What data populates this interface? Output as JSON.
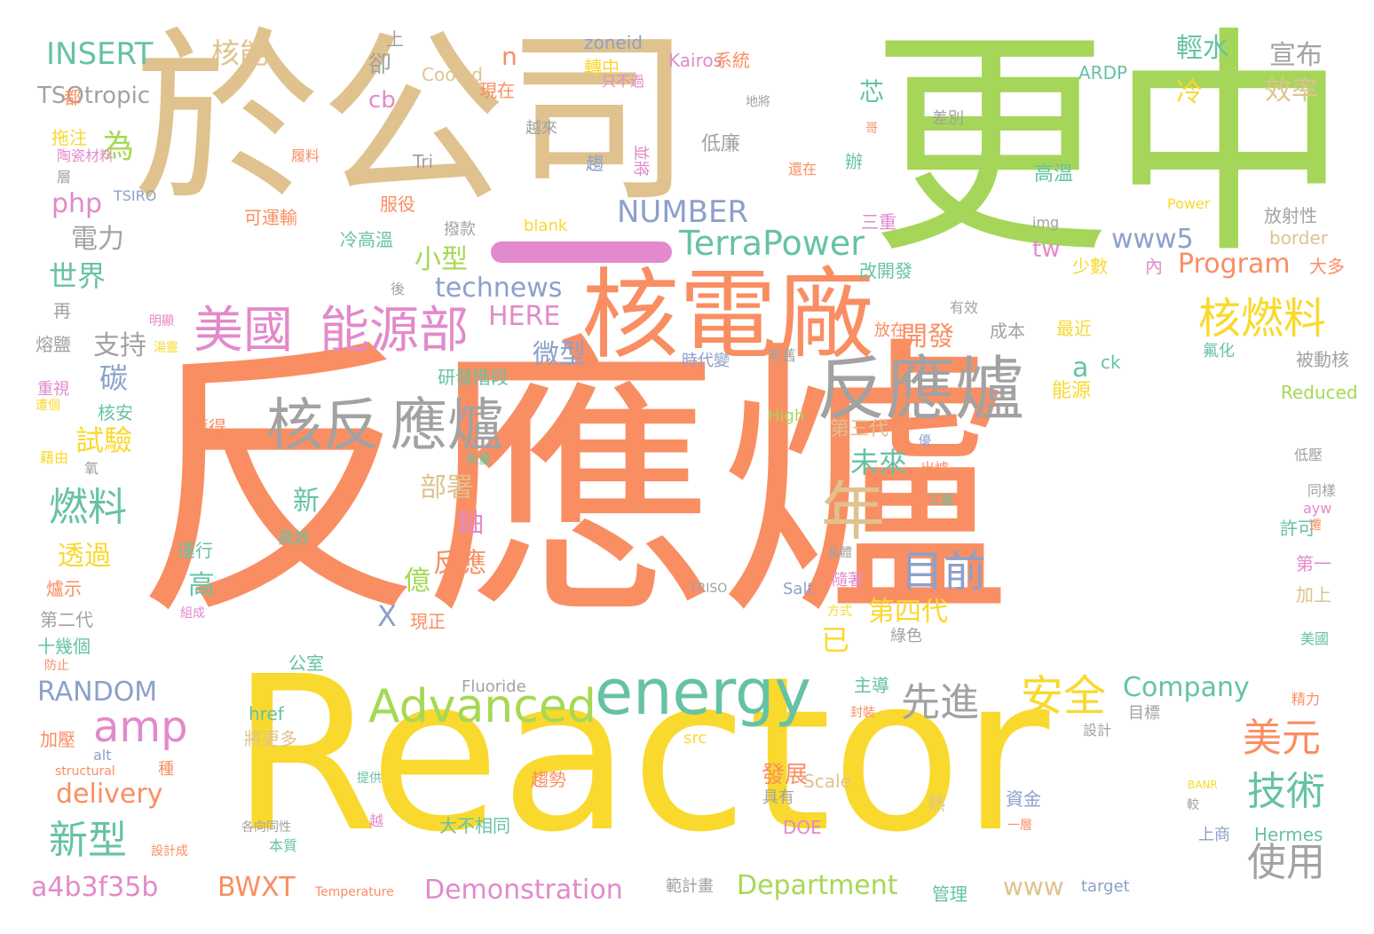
{
  "palette": {
    "tan": "#dfc28e",
    "green": "#a5d65a",
    "orange": "#f98e63",
    "yellow": "#f9d92d",
    "teal": "#66c2a5",
    "gray": "#a2a2a2",
    "pink": "#e28acb",
    "blue": "#8da0cb",
    "lime": "#a6d854"
  },
  "highlight_bar": {
    "color": "pink"
  },
  "words": [
    {
      "text": "於公司",
      "color": "tan"
    },
    {
      "text": "更中",
      "color": "green"
    },
    {
      "text": "反應爐",
      "color": "orange"
    },
    {
      "text": "Reactor",
      "color": "yellow"
    },
    {
      "text": "核電廠",
      "color": "orange"
    },
    {
      "text": "反應爐",
      "color": "gray"
    },
    {
      "text": "核反",
      "color": "gray"
    },
    {
      "text": "應爐",
      "color": "gray"
    },
    {
      "text": "美國",
      "color": "pink"
    },
    {
      "text": "能源部",
      "color": "pink"
    },
    {
      "text": "energy",
      "color": "teal"
    },
    {
      "text": "Advanced",
      "color": "lime"
    },
    {
      "text": "年",
      "color": "tan"
    },
    {
      "text": "核燃料",
      "color": "yellow"
    },
    {
      "text": "目前",
      "color": "blue"
    },
    {
      "text": "安全",
      "color": "yellow"
    },
    {
      "text": "先進",
      "color": "gray"
    },
    {
      "text": "amp",
      "color": "pink"
    },
    {
      "text": "燃料",
      "color": "teal"
    },
    {
      "text": "新型",
      "color": "teal"
    },
    {
      "text": "技術",
      "color": "teal"
    },
    {
      "text": "美元",
      "color": "orange"
    },
    {
      "text": "使用",
      "color": "gray"
    },
    {
      "text": "TerraPower",
      "color": "teal"
    },
    {
      "text": "NUMBER",
      "color": "blue"
    },
    {
      "text": "INSERT",
      "color": "teal"
    },
    {
      "text": "核能",
      "color": "tan"
    },
    {
      "text": "為",
      "color": "lime"
    },
    {
      "text": "php",
      "color": "pink"
    },
    {
      "text": "電力",
      "color": "gray"
    },
    {
      "text": "世界",
      "color": "teal"
    },
    {
      "text": "支持",
      "color": "gray"
    },
    {
      "text": "碳",
      "color": "blue"
    },
    {
      "text": "試驗",
      "color": "yellow"
    },
    {
      "text": "透過",
      "color": "yellow"
    },
    {
      "text": "RANDOM",
      "color": "blue"
    },
    {
      "text": "delivery",
      "color": "orange"
    },
    {
      "text": "a4b3f35b",
      "color": "pink"
    },
    {
      "text": "BWXT",
      "color": "orange"
    },
    {
      "text": "Demonstration",
      "color": "pink"
    },
    {
      "text": "Department",
      "color": "lime"
    },
    {
      "text": "Company",
      "color": "teal"
    },
    {
      "text": "Program",
      "color": "orange"
    },
    {
      "text": "www5",
      "color": "blue"
    },
    {
      "text": "technews",
      "color": "blue"
    },
    {
      "text": "HERE",
      "color": "pink"
    },
    {
      "text": "小型",
      "color": "lime"
    },
    {
      "text": "微型",
      "color": "blue"
    },
    {
      "text": "未來",
      "color": "teal"
    },
    {
      "text": "開發",
      "color": "orange"
    },
    {
      "text": "部署",
      "color": "tan"
    },
    {
      "text": "新",
      "color": "teal"
    },
    {
      "text": "鈾",
      "color": "pink"
    },
    {
      "text": "反應",
      "color": "orange"
    },
    {
      "text": "高",
      "color": "teal"
    },
    {
      "text": "億",
      "color": "lime"
    },
    {
      "text": "X",
      "color": "blue"
    },
    {
      "text": "第四代",
      "color": "yellow"
    },
    {
      "text": "已",
      "color": "yellow"
    },
    {
      "text": "效率",
      "color": "tan"
    },
    {
      "text": "輕水",
      "color": "teal"
    },
    {
      "text": "宣布",
      "color": "gray"
    },
    {
      "text": "冷",
      "color": "yellow"
    },
    {
      "text": "cb",
      "color": "pink"
    },
    {
      "text": "n",
      "color": "orange"
    },
    {
      "text": "卻",
      "color": "gray"
    },
    {
      "text": "芯",
      "color": "teal"
    },
    {
      "text": "tw",
      "color": "pink"
    },
    {
      "text": "www",
      "color": "tan"
    },
    {
      "text": "發展",
      "color": "orange"
    },
    {
      "text": "a",
      "color": "teal"
    },
    {
      "text": "上",
      "color": "gray"
    },
    {
      "text": "zoneid",
      "color": "blue"
    },
    {
      "text": "轉中",
      "color": "yellow"
    },
    {
      "text": "Kairos",
      "color": "pink"
    },
    {
      "text": "系統",
      "color": "orange"
    },
    {
      "text": "ARDP",
      "color": "teal"
    },
    {
      "text": "Cooled",
      "color": "tan"
    },
    {
      "text": "現在",
      "color": "orange"
    },
    {
      "text": "只不過",
      "color": "pink"
    },
    {
      "text": "地將",
      "color": "gray"
    },
    {
      "text": "TSOtropic",
      "color": "gray"
    },
    {
      "text": "都",
      "color": "orange"
    },
    {
      "text": "拖注",
      "color": "yellow"
    },
    {
      "text": "越來",
      "color": "gray"
    },
    {
      "text": "差別",
      "color": "gray"
    },
    {
      "text": "陶瓷材料",
      "color": "pink"
    },
    {
      "text": "履料",
      "color": "orange"
    },
    {
      "text": "Tri",
      "color": "gray"
    },
    {
      "text": "低廉",
      "color": "gray"
    },
    {
      "text": "趨",
      "color": "blue"
    },
    {
      "text": "並將",
      "color": "pink"
    },
    {
      "text": "辦",
      "color": "teal"
    },
    {
      "text": "還在",
      "color": "orange"
    },
    {
      "text": "層",
      "color": "gray"
    },
    {
      "text": "TSIRO",
      "color": "blue"
    },
    {
      "text": "高溫",
      "color": "teal"
    },
    {
      "text": "Power",
      "color": "yellow"
    },
    {
      "text": "可運輸",
      "color": "orange"
    },
    {
      "text": "服役",
      "color": "orange"
    },
    {
      "text": "撥款",
      "color": "gray"
    },
    {
      "text": "blank",
      "color": "yellow"
    },
    {
      "text": "三重",
      "color": "pink"
    },
    {
      "text": "img",
      "color": "gray"
    },
    {
      "text": "放射性",
      "color": "gray"
    },
    {
      "text": "border",
      "color": "tan"
    },
    {
      "text": "冷高溫",
      "color": "teal"
    },
    {
      "text": "改開發",
      "color": "teal"
    },
    {
      "text": "少數",
      "color": "yellow"
    },
    {
      "text": "內",
      "color": "pink"
    },
    {
      "text": "大多",
      "color": "orange"
    },
    {
      "text": "後",
      "color": "gray"
    },
    {
      "text": "再",
      "color": "gray"
    },
    {
      "text": "明顯",
      "color": "pink"
    },
    {
      "text": "有效",
      "color": "gray"
    },
    {
      "text": "熔鹽",
      "color": "gray"
    },
    {
      "text": "放在",
      "color": "orange"
    },
    {
      "text": "成本",
      "color": "gray"
    },
    {
      "text": "最近",
      "color": "yellow"
    },
    {
      "text": "研發階段",
      "color": "teal"
    },
    {
      "text": "時代變",
      "color": "blue"
    },
    {
      "text": "老舊",
      "color": "gray"
    },
    {
      "text": "ck",
      "color": "teal"
    },
    {
      "text": "氟化",
      "color": "teal"
    },
    {
      "text": "被動核",
      "color": "gray"
    },
    {
      "text": "重視",
      "color": "pink"
    },
    {
      "text": "核安",
      "color": "teal"
    },
    {
      "text": "能源",
      "color": "yellow"
    },
    {
      "text": "Reduced",
      "color": "lime"
    },
    {
      "text": "獲得",
      "color": "orange"
    },
    {
      "text": "第三代",
      "color": "tan"
    },
    {
      "text": "High",
      "color": "lime"
    },
    {
      "text": "優",
      "color": "blue"
    },
    {
      "text": "出爐",
      "color": "orange"
    },
    {
      "text": "藉由",
      "color": "yellow"
    },
    {
      "text": "氧",
      "color": "gray"
    },
    {
      "text": "熱量",
      "color": "teal"
    },
    {
      "text": "三層",
      "color": "teal"
    },
    {
      "text": "低壓",
      "color": "gray"
    },
    {
      "text": "同樣",
      "color": "gray"
    },
    {
      "text": "ayw",
      "color": "pink"
    },
    {
      "text": "許可",
      "color": "teal"
    },
    {
      "text": "運行",
      "color": "teal"
    },
    {
      "text": "高效",
      "color": "teal"
    },
    {
      "text": "晶體",
      "color": "gray"
    },
    {
      "text": "爐示",
      "color": "orange"
    },
    {
      "text": "TRISO",
      "color": "gray"
    },
    {
      "text": "Salt",
      "color": "blue"
    },
    {
      "text": "隨著",
      "color": "pink"
    },
    {
      "text": "第一",
      "color": "pink"
    },
    {
      "text": "加上",
      "color": "tan"
    },
    {
      "text": "組成",
      "color": "pink"
    },
    {
      "text": "方式",
      "color": "yellow"
    },
    {
      "text": "第二代",
      "color": "gray"
    },
    {
      "text": "現正",
      "color": "orange"
    },
    {
      "text": "綠色",
      "color": "gray"
    },
    {
      "text": "十幾個",
      "color": "teal"
    },
    {
      "text": "防止",
      "color": "orange"
    },
    {
      "text": "公室",
      "color": "teal"
    },
    {
      "text": "美國",
      "color": "teal"
    },
    {
      "text": "Fluoride",
      "color": "gray"
    },
    {
      "text": "主導",
      "color": "teal"
    },
    {
      "text": "精力",
      "color": "orange"
    },
    {
      "text": "href",
      "color": "teal"
    },
    {
      "text": "封裝",
      "color": "orange"
    },
    {
      "text": "目標",
      "color": "gray"
    },
    {
      "text": "加壓",
      "color": "orange"
    },
    {
      "text": "將更多",
      "color": "tan"
    },
    {
      "text": "src",
      "color": "yellow"
    },
    {
      "text": "設計",
      "color": "gray"
    },
    {
      "text": "alt",
      "color": "blue"
    },
    {
      "text": "structural",
      "color": "orange"
    },
    {
      "text": "種",
      "color": "orange"
    },
    {
      "text": "提供",
      "color": "teal"
    },
    {
      "text": "趨勢",
      "color": "orange"
    },
    {
      "text": "Scale",
      "color": "tan"
    },
    {
      "text": "具有",
      "color": "gray"
    },
    {
      "text": "BANR",
      "color": "yellow"
    },
    {
      "text": "熱",
      "color": "tan"
    },
    {
      "text": "資金",
      "color": "blue"
    },
    {
      "text": "較",
      "color": "gray"
    },
    {
      "text": "各向同性",
      "color": "gray"
    },
    {
      "text": "越",
      "color": "pink"
    },
    {
      "text": "大不相同",
      "color": "teal"
    },
    {
      "text": "DOE",
      "color": "pink"
    },
    {
      "text": "一層",
      "color": "orange"
    },
    {
      "text": "上商",
      "color": "blue"
    },
    {
      "text": "Hermes",
      "color": "teal"
    },
    {
      "text": "設計成",
      "color": "orange"
    },
    {
      "text": "本質",
      "color": "teal"
    },
    {
      "text": "Temperature",
      "color": "orange"
    },
    {
      "text": "範計畫",
      "color": "gray"
    },
    {
      "text": "管理",
      "color": "teal"
    },
    {
      "text": "target",
      "color": "blue"
    },
    {
      "text": "遷",
      "color": "orange"
    },
    {
      "text": "遭個",
      "color": "yellow"
    },
    {
      "text": "湯靈",
      "color": "yellow"
    },
    {
      "text": "哥",
      "color": "orange"
    }
  ]
}
